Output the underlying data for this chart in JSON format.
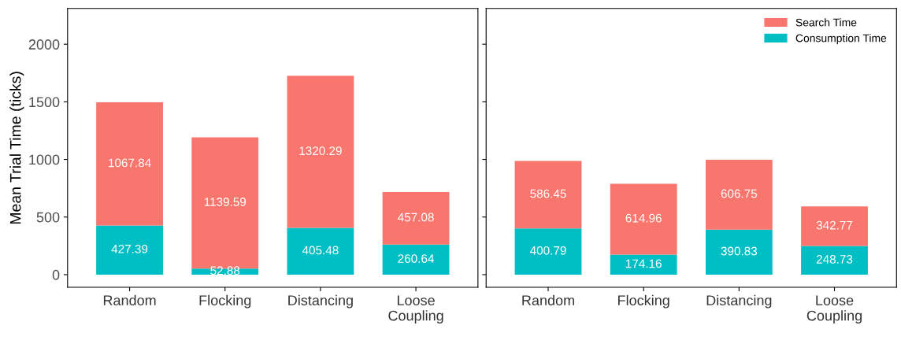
{
  "chart_data": [
    {
      "type": "bar",
      "stacked": true,
      "ylabel": "Mean Trial Time (ticks)",
      "categories": [
        "Random",
        "Flocking",
        "Distancing",
        "Loose\nCoupling"
      ],
      "ylim": [
        -110,
        2310
      ],
      "yticks": [
        0,
        500,
        1000,
        1500,
        2000
      ],
      "grid": false,
      "data_labels": true,
      "legend": false,
      "series": [
        {
          "color": "#00bfc4",
          "values": [
            427.39,
            52.88,
            405.48,
            260.64
          ]
        },
        {
          "color": "#f8766d",
          "values": [
            1067.84,
            1139.59,
            1320.29,
            457.08
          ]
        }
      ]
    },
    {
      "type": "bar",
      "stacked": true,
      "categories": [
        "Random",
        "Flocking",
        "Distancing",
        "Loose\nCoupling"
      ],
      "ylim": [
        -110,
        2310
      ],
      "yticks": [
        0,
        500,
        1000,
        1500,
        2000
      ],
      "grid": false,
      "data_labels": true,
      "legend": "top right",
      "tick_labels": "x",
      "series": [
        {
          "name": "Consumption Time",
          "color": "#00bfc4",
          "values": [
            400.79,
            174.16,
            390.83,
            248.73
          ]
        },
        {
          "name": "Search Time",
          "color": "#f8766d",
          "values": [
            586.45,
            614.96,
            606.75,
            342.77
          ]
        }
      ]
    }
  ]
}
